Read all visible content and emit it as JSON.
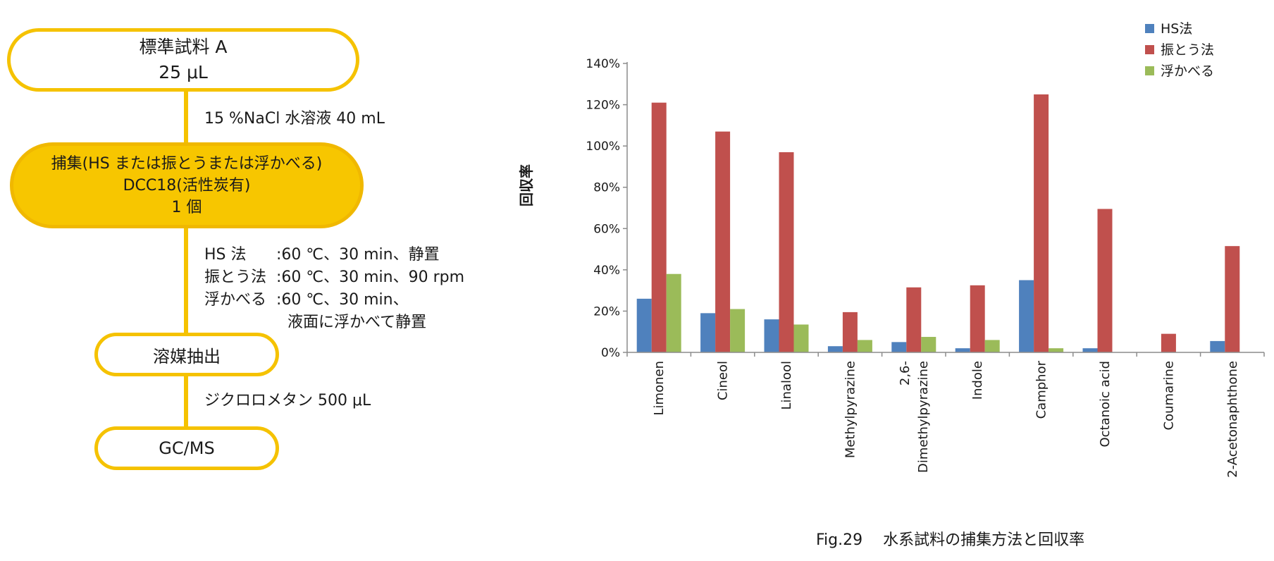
{
  "flow": {
    "start": {
      "line1": "標準試料 A",
      "line2": "25 μL"
    },
    "reagent1": "15 %NaCl 水溶液 40 mL",
    "capture": {
      "line1": "捕集(HS または振とうまたは浮かべる)",
      "line2": "DCC18(活性炭有)",
      "line3": "1 個"
    },
    "conditions": [
      {
        "key": "HS 法",
        "text": ":60 ℃、30 min、静置"
      },
      {
        "key": "振とう法",
        "text": ":60 ℃、30 min、90 rpm"
      },
      {
        "key": "浮かべる",
        "text": ":60 ℃、30 min、"
      },
      {
        "key": "",
        "text": "液面に浮かべて静置"
      }
    ],
    "extract": "溶媒抽出",
    "reagent2": "ジクロロメタン 500 μL",
    "end": "GC/MS"
  },
  "caption": "Fig.29　 水系試料の捕集方法と回収率",
  "chart_data": {
    "type": "bar",
    "ylabel": "回収率",
    "ylim": [
      0,
      140
    ],
    "yticks": [
      "0%",
      "20%",
      "40%",
      "60%",
      "80%",
      "100%",
      "120%",
      "140%"
    ],
    "legend_position": "top-right",
    "grid": false,
    "categories": [
      {
        "lines": [
          "Limonen"
        ]
      },
      {
        "lines": [
          "Cineol"
        ]
      },
      {
        "lines": [
          "Linalool"
        ]
      },
      {
        "lines": [
          "Methylpyrazine"
        ]
      },
      {
        "lines": [
          "2,6-",
          "Dimethylpyrazine"
        ]
      },
      {
        "lines": [
          "Indole"
        ]
      },
      {
        "lines": [
          "Camphor"
        ]
      },
      {
        "lines": [
          "Octanoic acid"
        ]
      },
      {
        "lines": [
          "Coumarine"
        ]
      },
      {
        "lines": [
          "2-Acetonaphthone"
        ]
      }
    ],
    "series": [
      {
        "name": "HS法",
        "color": "#4f81bd",
        "values": [
          26,
          19,
          16,
          3,
          5,
          2,
          35,
          2,
          0,
          5.5
        ]
      },
      {
        "name": "振とう法",
        "color": "#c0504d",
        "values": [
          121,
          107,
          97,
          19.5,
          31.5,
          32.5,
          125,
          69.5,
          9,
          51.5
        ]
      },
      {
        "name": "浮かべる",
        "color": "#9bbb59",
        "values": [
          38,
          21,
          13.5,
          6,
          7.5,
          6,
          2,
          0,
          0,
          0
        ]
      }
    ]
  }
}
